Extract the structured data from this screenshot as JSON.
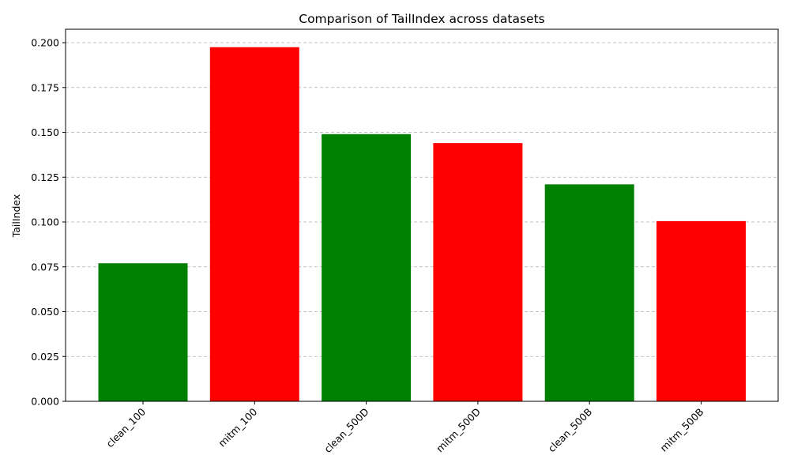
{
  "chart_data": {
    "type": "bar",
    "title": "Comparison of TailIndex across datasets",
    "xlabel": "",
    "ylabel": "TailIndex",
    "categories": [
      "clean_100",
      "mitm_100",
      "clean_500D",
      "mitm_500D",
      "clean_500B",
      "mitm_500B"
    ],
    "values": [
      0.077,
      0.1975,
      0.149,
      0.144,
      0.121,
      0.1005
    ],
    "bar_colors": [
      "#008000",
      "#ff0000",
      "#008000",
      "#ff0000",
      "#008000",
      "#ff0000"
    ],
    "ylim": [
      0,
      0.2075
    ],
    "yticks": [
      "0.000",
      "0.025",
      "0.050",
      "0.075",
      "0.100",
      "0.125",
      "0.150",
      "0.175",
      "0.200"
    ],
    "grid": "y-dashed"
  }
}
